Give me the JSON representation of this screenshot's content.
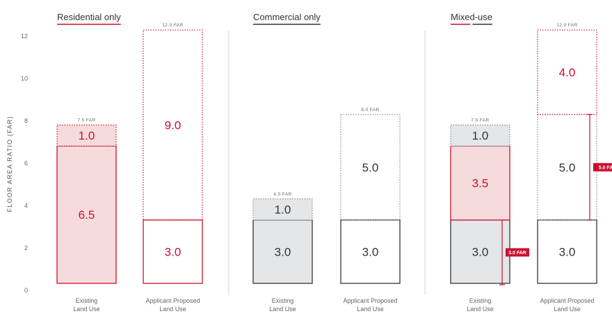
{
  "chart_data": {
    "type": "bar",
    "y_axis": {
      "label": "FLOOR AREA RATIO (FAR)",
      "ticks": [
        "0",
        "2",
        "4",
        "6",
        "8",
        "10",
        "12"
      ],
      "ylim": [
        0,
        12.5
      ]
    },
    "colors": {
      "residential": "#c8102e",
      "commercial": "#333333",
      "residential_fill": "#f5dbdc",
      "commercial_fill": "#e4e6e8",
      "dotted": "#c8102e",
      "dotted_grey": "#888888",
      "divider": "#d6d6d6"
    },
    "panels": [
      {
        "title": "Residential only",
        "underline": [
          "residential"
        ],
        "bars": [
          {
            "category": [
              "Existing",
              "Land Use"
            ],
            "total_label": "7.5 FAR",
            "segments": [
              {
                "value": 6.5,
                "label": "6.5",
                "style": "res-solid"
              },
              {
                "value": 1.0,
                "label": "1.0",
                "style": "res-dotted-filled"
              }
            ]
          },
          {
            "category": [
              "Applicant Proposed",
              "Land Use"
            ],
            "total_label": "12.0 FAR",
            "segments": [
              {
                "value": 3.0,
                "label": "3.0",
                "style": "res-outline"
              },
              {
                "value": 9.0,
                "label": "9.0",
                "style": "res-dotted"
              }
            ]
          }
        ]
      },
      {
        "title": "Commercial only",
        "underline": [
          "commercial"
        ],
        "bars": [
          {
            "category": [
              "Existing",
              "Land Use"
            ],
            "total_label": "4.0 FAR",
            "segments": [
              {
                "value": 3.0,
                "label": "3.0",
                "style": "com-solid"
              },
              {
                "value": 1.0,
                "label": "1.0",
                "style": "com-dotted-filled"
              }
            ]
          },
          {
            "category": [
              "Applicant Proposed",
              "Land Use"
            ],
            "total_label": "8.0 FAR",
            "segments": [
              {
                "value": 3.0,
                "label": "3.0",
                "style": "com-outline"
              },
              {
                "value": 5.0,
                "label": "5.0",
                "style": "com-dotted"
              }
            ]
          }
        ]
      },
      {
        "title": "Mixed-use",
        "underline": [
          "residential",
          "commercial"
        ],
        "bars": [
          {
            "category": [
              "Existing",
              "Land Use"
            ],
            "total_label": "7.5 FAR",
            "segments": [
              {
                "value": 3.0,
                "label": "3.0",
                "style": "com-solid"
              },
              {
                "value": 3.5,
                "label": "3.5",
                "style": "res-solid"
              },
              {
                "value": 1.0,
                "label": "1.0",
                "style": "com-dotted-filled"
              }
            ],
            "bracket": {
              "from": 0,
              "to": 3.0,
              "label": "3.0 FAR"
            }
          },
          {
            "category": [
              "Applicant Proposed",
              "Land Use"
            ],
            "total_label": "12.0 FAR",
            "segments": [
              {
                "value": 3.0,
                "label": "3.0",
                "style": "com-outline"
              },
              {
                "value": 5.0,
                "label": "5.0",
                "style": "com-dotted"
              },
              {
                "value": 4.0,
                "label": "4.0",
                "style": "res-dotted"
              }
            ],
            "bracket": {
              "from": 3.0,
              "to": 8.0,
              "label": "5.0 FA"
            }
          }
        ]
      }
    ]
  }
}
